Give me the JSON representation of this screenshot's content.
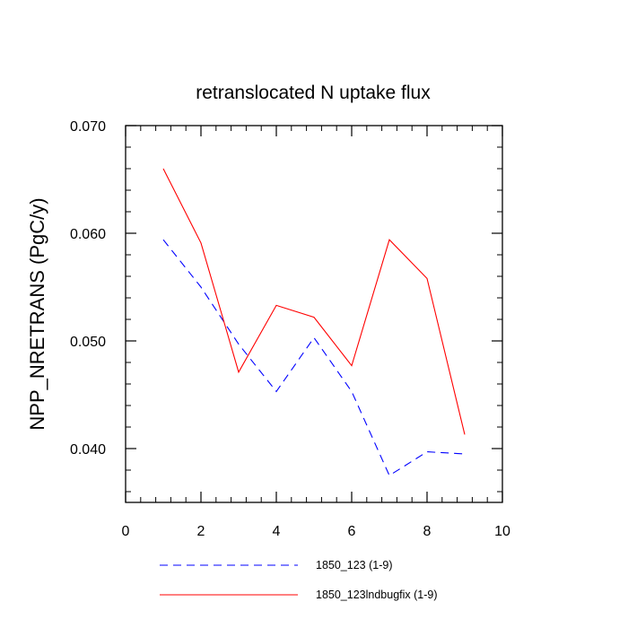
{
  "chart_data": {
    "type": "line",
    "title": "retranslocated N uptake flux",
    "xlabel": "",
    "ylabel": "NPP_NRETRANS  (PgC/y)",
    "xlim": [
      0,
      10
    ],
    "ylim": [
      0.035,
      0.07
    ],
    "x_ticks": [
      0,
      2,
      4,
      6,
      8,
      10
    ],
    "x_tick_labels": [
      "0",
      "2",
      "4",
      "6",
      "8",
      "10"
    ],
    "y_ticks": [
      0.04,
      0.05,
      0.06,
      0.07
    ],
    "y_tick_labels": [
      "0.040",
      "0.050",
      "0.060",
      "0.070"
    ],
    "grid": false,
    "legend_position": "bottom",
    "series": [
      {
        "name": "1850_123 (1-9)",
        "color": "#0000ff",
        "style": "dashed",
        "x": [
          1,
          2,
          3,
          4,
          5,
          6,
          7,
          8,
          9
        ],
        "values": [
          0.0594,
          0.055,
          0.0497,
          0.0453,
          0.0503,
          0.0453,
          0.0375,
          0.0397,
          0.0395
        ]
      },
      {
        "name": "1850_123lndbugfix (1-9)",
        "color": "#ff0000",
        "style": "solid",
        "x": [
          1,
          2,
          3,
          4,
          5,
          6,
          7,
          8,
          9
        ],
        "values": [
          0.066,
          0.0591,
          0.0471,
          0.0533,
          0.0522,
          0.0477,
          0.0594,
          0.0558,
          0.0413
        ]
      }
    ]
  }
}
